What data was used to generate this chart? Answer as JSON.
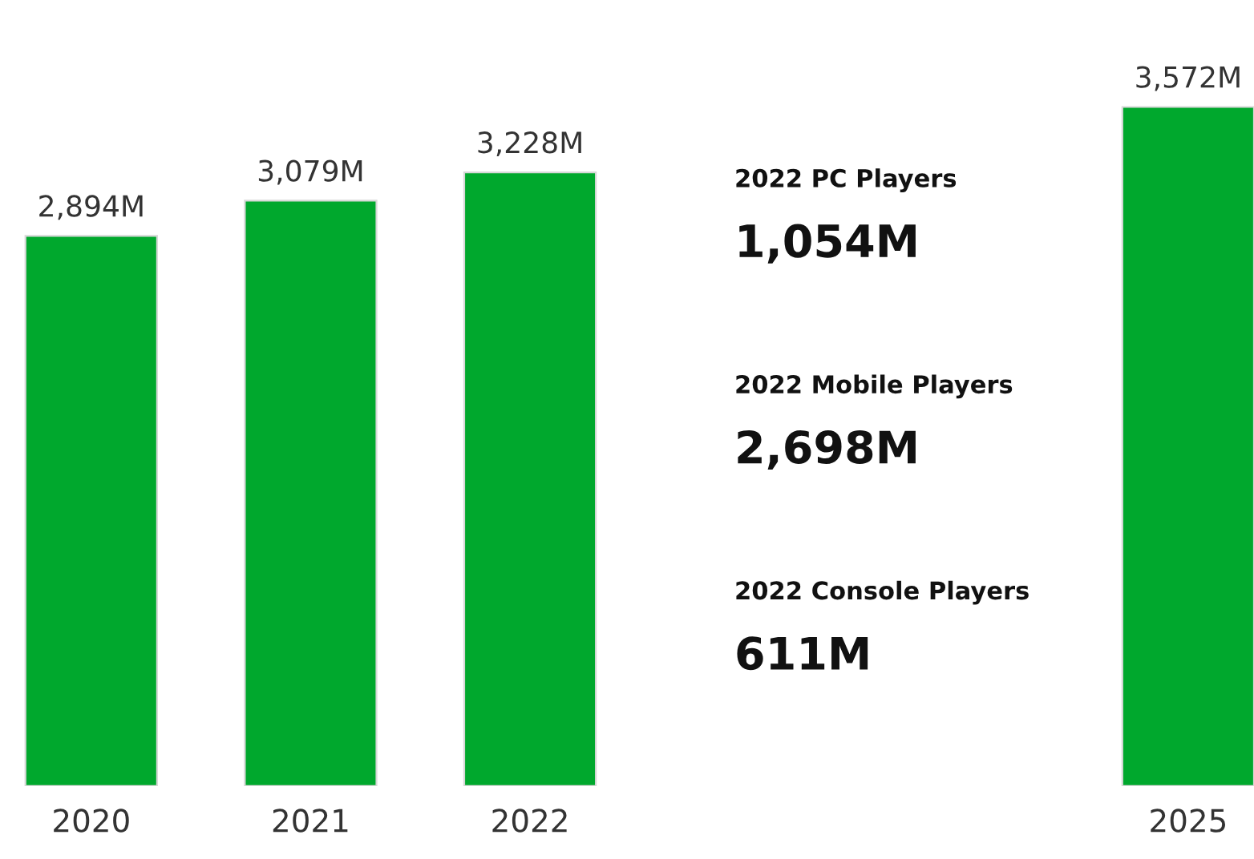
{
  "chart_data": {
    "type": "bar",
    "categories": [
      "2020",
      "2021",
      "2022",
      null,
      null,
      "2025"
    ],
    "values": [
      2894,
      3079,
      3228,
      null,
      null,
      3572
    ],
    "value_labels": [
      "2,894M",
      "3,079M",
      "3,228M",
      null,
      null,
      "3,572M"
    ],
    "color": "#00a82d",
    "grid": false,
    "legend": false,
    "annotations": [
      "2022 PC Players",
      "1,054M",
      "2022 Mobile Players",
      "2,698M",
      "2022 Console Players",
      "611M"
    ]
  }
}
